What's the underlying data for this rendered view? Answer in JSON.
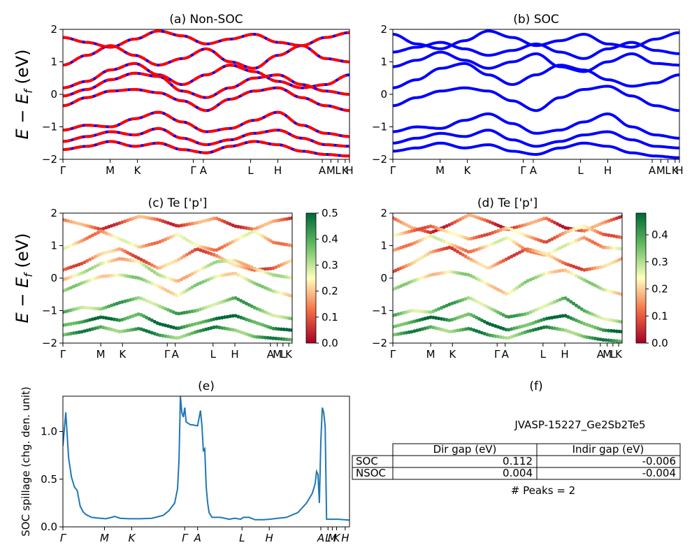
{
  "chart_data": [
    {
      "id": "a",
      "type": "line",
      "title": "(a) Non-SOC",
      "ylabel": "E − E_f (eV)",
      "ylim": [
        -2,
        2
      ],
      "yticks": [
        2,
        1,
        0,
        -1,
        -2
      ],
      "kpoint_labels": [
        "Γ",
        "M",
        "K",
        "Γ",
        "A",
        "L",
        "H",
        "A",
        "M",
        "L",
        "K",
        "H"
      ],
      "kpoint_positions": [
        0,
        0.165,
        0.26,
        0.455,
        0.49,
        0.655,
        0.75,
        0.905,
        0.935,
        0.96,
        0.985,
        1.0
      ],
      "series": [
        {
          "color": "#0000ff",
          "style": "solid",
          "bands": [
            [
              1.75,
              1.6,
              1.45,
              1.7,
              1.95,
              1.8,
              1.55,
              1.7,
              1.85,
              1.6,
              1.5,
              1.75,
              1.9
            ],
            [
              0.9,
              1.2,
              1.5,
              1.2,
              0.9,
              1.1,
              1.4,
              1.0,
              0.8,
              1.2,
              1.5,
              1.1,
              1.0
            ],
            [
              0.2,
              0.4,
              0.75,
              0.95,
              0.6,
              0.3,
              0.6,
              0.9,
              0.7,
              0.4,
              0.2,
              0.3,
              0.6
            ],
            [
              -0.05,
              0.15,
              0.45,
              0.65,
              0.55,
              0.1,
              -0.1,
              0.2,
              0.5,
              0.6,
              0.3,
              0.1,
              0.0
            ],
            [
              -0.35,
              -0.1,
              0.1,
              0.15,
              0.05,
              -0.2,
              -0.5,
              -0.15,
              0.1,
              0.2,
              -0.1,
              -0.35,
              -0.5
            ],
            [
              -1.1,
              -0.95,
              -1.0,
              -0.75,
              -0.55,
              -0.85,
              -1.15,
              -1.05,
              -0.8,
              -0.55,
              -0.95,
              -1.2,
              -1.3
            ],
            [
              -1.45,
              -1.3,
              -1.15,
              -1.25,
              -1.05,
              -1.35,
              -1.55,
              -1.4,
              -1.2,
              -1.1,
              -1.35,
              -1.55,
              -1.6
            ],
            [
              -1.7,
              -1.6,
              -1.45,
              -1.6,
              -1.5,
              -1.7,
              -1.8,
              -1.6,
              -1.45,
              -1.55,
              -1.75,
              -1.85,
              -1.9
            ]
          ]
        },
        {
          "color": "#ff0000",
          "style": "dashed",
          "bands": [
            [
              1.75,
              1.6,
              1.45,
              1.7,
              1.95,
              1.8,
              1.55,
              1.7,
              1.85,
              1.6,
              1.5,
              1.75,
              1.9
            ],
            [
              0.9,
              1.2,
              1.5,
              1.2,
              0.9,
              1.1,
              1.4,
              1.0,
              0.8,
              1.2,
              1.5,
              1.1,
              1.0
            ],
            [
              0.2,
              0.4,
              0.75,
              0.95,
              0.6,
              0.3,
              0.6,
              0.9,
              0.7,
              0.4,
              0.2,
              0.3,
              0.6
            ],
            [
              -0.05,
              0.15,
              0.45,
              0.65,
              0.55,
              0.1,
              -0.1,
              0.2,
              0.5,
              0.6,
              0.3,
              0.1,
              0.0
            ],
            [
              -0.35,
              -0.1,
              0.1,
              0.15,
              0.05,
              -0.2,
              -0.5,
              -0.15,
              0.1,
              0.2,
              -0.1,
              -0.35,
              -0.5
            ],
            [
              -1.1,
              -0.95,
              -1.0,
              -0.75,
              -0.55,
              -0.85,
              -1.15,
              -1.05,
              -0.8,
              -0.55,
              -0.95,
              -1.2,
              -1.3
            ],
            [
              -1.45,
              -1.3,
              -1.15,
              -1.25,
              -1.05,
              -1.35,
              -1.55,
              -1.4,
              -1.2,
              -1.1,
              -1.35,
              -1.55,
              -1.6
            ],
            [
              -1.7,
              -1.6,
              -1.45,
              -1.6,
              -1.5,
              -1.7,
              -1.8,
              -1.6,
              -1.45,
              -1.55,
              -1.75,
              -1.85,
              -1.9
            ]
          ]
        }
      ]
    },
    {
      "id": "b",
      "type": "line",
      "title": "(b) SOC",
      "ylim": [
        -2,
        2
      ],
      "yticks": [
        2,
        1,
        0,
        -1,
        -2
      ],
      "kpoint_labels": [
        "Γ",
        "M",
        "K",
        "Γ",
        "A",
        "L",
        "H",
        "A",
        "M",
        "L",
        "K",
        "H"
      ],
      "kpoint_positions": [
        0,
        0.165,
        0.26,
        0.455,
        0.49,
        0.655,
        0.75,
        0.905,
        0.935,
        0.96,
        0.985,
        1.0
      ],
      "series": [
        {
          "color": "#0000ff",
          "style": "solid",
          "bands": [
            [
              1.85,
              1.55,
              1.4,
              1.65,
              1.95,
              1.75,
              1.5,
              1.65,
              1.85,
              1.55,
              1.45,
              1.7,
              1.9
            ],
            [
              1.3,
              1.45,
              1.6,
              1.4,
              1.2,
              1.35,
              1.55,
              1.3,
              1.1,
              1.4,
              1.6,
              1.35,
              1.25
            ],
            [
              0.85,
              1.05,
              1.3,
              1.05,
              0.8,
              1.0,
              1.25,
              0.85,
              0.7,
              1.0,
              1.25,
              0.95,
              0.9
            ],
            [
              0.2,
              0.45,
              0.8,
              0.95,
              0.6,
              0.3,
              0.6,
              0.9,
              0.75,
              0.45,
              0.25,
              0.35,
              0.6
            ],
            [
              -0.35,
              -0.1,
              0.1,
              0.2,
              0.1,
              -0.2,
              -0.5,
              -0.1,
              0.15,
              0.25,
              -0.05,
              -0.35,
              -0.5
            ],
            [
              -1.15,
              -1.0,
              -1.05,
              -0.8,
              -0.6,
              -0.9,
              -1.2,
              -1.1,
              -0.85,
              -0.6,
              -1.0,
              -1.25,
              -1.35
            ],
            [
              -1.5,
              -1.35,
              -1.2,
              -1.3,
              -1.1,
              -1.4,
              -1.6,
              -1.45,
              -1.25,
              -1.15,
              -1.4,
              -1.6,
              -1.65
            ],
            [
              -1.75,
              -1.65,
              -1.5,
              -1.65,
              -1.55,
              -1.75,
              -1.85,
              -1.65,
              -1.5,
              -1.6,
              -1.8,
              -1.9,
              -1.95
            ]
          ]
        }
      ]
    },
    {
      "id": "c",
      "type": "scatter",
      "title": "(c)  Te ['p']",
      "ylabel": "E − E_f (eV)",
      "ylim": [
        -2,
        2
      ],
      "yticks": [
        2,
        1,
        0,
        -1,
        -2
      ],
      "kpoint_labels": [
        "Γ",
        "M",
        "K",
        "Γ",
        "A",
        "L",
        "H",
        "A",
        "M",
        "L",
        "K"
      ],
      "kpoint_positions": [
        0,
        0.165,
        0.26,
        0.455,
        0.49,
        0.655,
        0.75,
        0.905,
        0.935,
        0.96,
        0.985
      ],
      "colorbar": {
        "colormap": "RdYlGn",
        "range": [
          0.0,
          0.5
        ],
        "ticks": [
          "0.5",
          "0.4",
          "0.3",
          "0.2",
          "0.1",
          "0.0"
        ]
      },
      "bands": [
        {
          "values": [
            1.8,
            1.65,
            1.5,
            1.7,
            1.9,
            1.8,
            1.6,
            1.7,
            1.85,
            1.6,
            1.5,
            1.75,
            1.85
          ],
          "weight": 0.12
        },
        {
          "values": [
            0.9,
            1.15,
            1.45,
            1.2,
            0.95,
            1.1,
            1.35,
            1.0,
            0.85,
            1.15,
            1.45,
            1.1,
            1.0
          ],
          "weight": 0.2
        },
        {
          "values": [
            0.25,
            0.45,
            0.75,
            0.9,
            0.6,
            0.3,
            0.55,
            0.9,
            0.7,
            0.4,
            0.25,
            0.3,
            0.55
          ],
          "weight": 0.15
        },
        {
          "values": [
            -0.05,
            0.15,
            0.45,
            0.6,
            0.5,
            0.1,
            -0.1,
            0.2,
            0.5,
            0.55,
            0.3,
            0.1,
            0.0
          ],
          "weight": 0.25
        },
        {
          "values": [
            -0.4,
            -0.15,
            0.05,
            0.1,
            0.0,
            -0.25,
            -0.55,
            -0.2,
            0.05,
            0.15,
            -0.15,
            -0.4,
            -0.55
          ],
          "weight": 0.28
        },
        {
          "values": [
            -1.05,
            -0.9,
            -0.95,
            -0.75,
            -0.6,
            -0.85,
            -1.1,
            -1.0,
            -0.8,
            -0.6,
            -0.9,
            -1.15,
            -1.25
          ],
          "weight": 0.36
        },
        {
          "values": [
            -1.45,
            -1.35,
            -1.2,
            -1.3,
            -1.1,
            -1.4,
            -1.55,
            -1.4,
            -1.25,
            -1.15,
            -1.35,
            -1.55,
            -1.6
          ],
          "weight": 0.45
        },
        {
          "values": [
            -1.75,
            -1.65,
            -1.5,
            -1.65,
            -1.55,
            -1.75,
            -1.85,
            -1.65,
            -1.5,
            -1.6,
            -1.8,
            -1.85,
            -1.9
          ],
          "weight": 0.4
        }
      ]
    },
    {
      "id": "d",
      "type": "scatter",
      "title": "(d) Te ['p']",
      "ylim": [
        -2,
        2
      ],
      "yticks": [
        2,
        1,
        0,
        -1,
        -2
      ],
      "kpoint_labels": [
        "Γ",
        "M",
        "K",
        "Γ",
        "A",
        "L",
        "H",
        "A",
        "M",
        "L",
        "K"
      ],
      "kpoint_positions": [
        0,
        0.165,
        0.26,
        0.455,
        0.49,
        0.655,
        0.75,
        0.905,
        0.935,
        0.96,
        0.985
      ],
      "colorbar": {
        "colormap": "RdYlGn",
        "range": [
          0.0,
          0.48
        ],
        "ticks": [
          "0.4",
          "0.3",
          "0.2",
          "0.1",
          "0.0"
        ]
      },
      "bands": [
        {
          "values": [
            1.85,
            1.55,
            1.4,
            1.65,
            1.95,
            1.75,
            1.5,
            1.65,
            1.85,
            1.55,
            1.45,
            1.7,
            1.9
          ],
          "weight": 0.1
        },
        {
          "values": [
            1.3,
            1.45,
            1.6,
            1.4,
            1.2,
            1.35,
            1.55,
            1.3,
            1.1,
            1.4,
            1.6,
            1.35,
            1.25
          ],
          "weight": 0.16
        },
        {
          "values": [
            0.85,
            1.05,
            1.3,
            1.05,
            0.8,
            1.0,
            1.25,
            0.85,
            0.7,
            1.0,
            1.25,
            0.95,
            0.9
          ],
          "weight": 0.2
        },
        {
          "values": [
            0.2,
            0.45,
            0.8,
            0.95,
            0.6,
            0.3,
            0.6,
            0.9,
            0.75,
            0.45,
            0.25,
            0.35,
            0.6
          ],
          "weight": 0.14
        },
        {
          "values": [
            -0.35,
            -0.1,
            0.1,
            0.2,
            0.1,
            -0.2,
            -0.5,
            -0.1,
            0.15,
            0.25,
            -0.05,
            -0.35,
            -0.5
          ],
          "weight": 0.26
        },
        {
          "values": [
            -1.15,
            -1.0,
            -1.05,
            -0.8,
            -0.6,
            -0.9,
            -1.2,
            -1.1,
            -0.85,
            -0.6,
            -1.0,
            -1.25,
            -1.35
          ],
          "weight": 0.34
        },
        {
          "values": [
            -1.5,
            -1.35,
            -1.2,
            -1.3,
            -1.1,
            -1.4,
            -1.6,
            -1.45,
            -1.25,
            -1.15,
            -1.4,
            -1.6,
            -1.65
          ],
          "weight": 0.42
        },
        {
          "values": [
            -1.75,
            -1.65,
            -1.5,
            -1.65,
            -1.55,
            -1.75,
            -1.85,
            -1.65,
            -1.5,
            -1.6,
            -1.8,
            -1.9,
            -1.95
          ],
          "weight": 0.38
        }
      ]
    },
    {
      "id": "e",
      "type": "line",
      "title": "(e)",
      "ylabel": "SOC spillage (chg. den. unit)",
      "ylim": [
        0,
        1.37
      ],
      "yticks": [
        0.0,
        0.5,
        1.0
      ],
      "ytick_labels": [
        "0.0",
        "0.5",
        "1.0"
      ],
      "kpoint_labels": [
        "Γ",
        "M",
        "K",
        "Γ",
        "A",
        "L",
        "H",
        "A",
        "L",
        "M",
        "K",
        "H"
      ],
      "kpoint_positions": [
        0,
        0.145,
        0.24,
        0.425,
        0.47,
        0.625,
        0.72,
        0.9,
        0.925,
        0.94,
        0.955,
        0.985
      ],
      "series": [
        {
          "color": "#1f77b4",
          "x": [
            0,
            0.01,
            0.02,
            0.03,
            0.04,
            0.05,
            0.06,
            0.07,
            0.08,
            0.1,
            0.13,
            0.15,
            0.17,
            0.18,
            0.2,
            0.23,
            0.27,
            0.31,
            0.35,
            0.37,
            0.39,
            0.4,
            0.405,
            0.41,
            0.415,
            0.42,
            0.425,
            0.43,
            0.435,
            0.44,
            0.445,
            0.45,
            0.47,
            0.48,
            0.485,
            0.49,
            0.495,
            0.5,
            0.505,
            0.51,
            0.52,
            0.53,
            0.55,
            0.58,
            0.6,
            0.62,
            0.63,
            0.65,
            0.67,
            0.7,
            0.72,
            0.75,
            0.78,
            0.82,
            0.85,
            0.87,
            0.88,
            0.885,
            0.89,
            0.895,
            0.9,
            0.905,
            0.91,
            0.915,
            0.92,
            0.93,
            0.96,
            1.0
          ],
          "values": [
            0.85,
            1.2,
            0.72,
            0.52,
            0.42,
            0.38,
            0.22,
            0.16,
            0.13,
            0.1,
            0.09,
            0.085,
            0.1,
            0.11,
            0.09,
            0.085,
            0.085,
            0.09,
            0.12,
            0.17,
            0.25,
            0.4,
            0.7,
            1.37,
            1.2,
            1.15,
            1.25,
            1.1,
            1.09,
            1.08,
            1.07,
            1.07,
            1.06,
            1.22,
            1.06,
            0.8,
            0.82,
            0.42,
            0.25,
            0.15,
            0.1,
            0.1,
            0.1,
            0.08,
            0.09,
            0.08,
            0.1,
            0.1,
            0.075,
            0.075,
            0.08,
            0.09,
            0.1,
            0.15,
            0.25,
            0.35,
            0.45,
            0.58,
            0.55,
            0.25,
            0.9,
            1.25,
            1.2,
            1.05,
            0.08,
            0.08,
            0.08,
            0.07
          ]
        }
      ]
    }
  ],
  "panel_f": {
    "title": "(f)",
    "material": "JVASP-15227_Ge2Sb2Te5",
    "table": {
      "headers": [
        "Dir gap (eV)",
        "Indir gap (eV)"
      ],
      "rows": [
        {
          "label": "SOC",
          "dir_gap": "0.112",
          "indir_gap": "-0.006"
        },
        {
          "label": "NSOC",
          "dir_gap": "0.004",
          "indir_gap": "-0.004"
        }
      ]
    },
    "peaks_text": "# Peaks = 2"
  }
}
